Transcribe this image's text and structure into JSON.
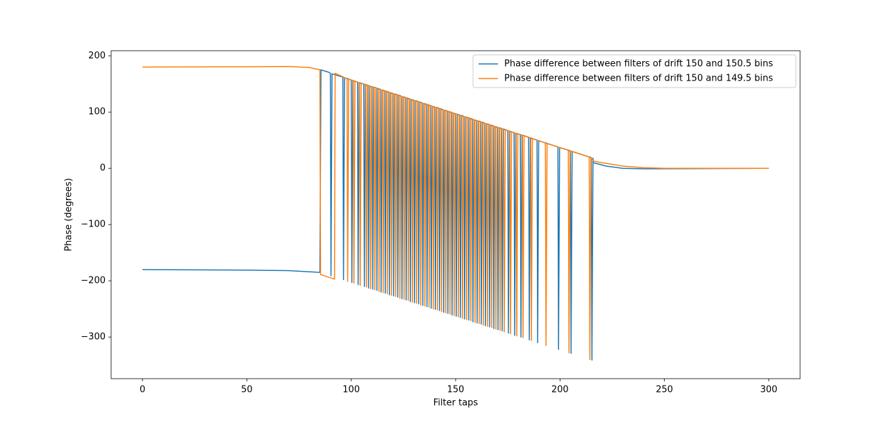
{
  "chart_data": {
    "type": "line",
    "xlabel": "Filter taps",
    "ylabel": "Phase (degrees)",
    "xlim": [
      -15,
      315
    ],
    "ylim": [
      -374,
      209
    ],
    "xticks": [
      0,
      50,
      100,
      150,
      200,
      250,
      300
    ],
    "yticks": [
      {
        "value": -300,
        "label": "−300"
      },
      {
        "value": -200,
        "label": "−200"
      },
      {
        "value": -100,
        "label": "−100"
      },
      0,
      100,
      200
    ],
    "legend": "upper right",
    "series": [
      {
        "name": "Phase difference between filters of drift 150 and 150.5 bins",
        "color": "#1f77b4",
        "x": [
          0,
          50,
          70,
          85,
          85.5,
          89,
          90,
          90.3,
          90.8,
          96,
          96.3,
          96.8,
          100,
          100.3,
          100.8,
          103,
          103.3,
          103.8,
          106,
          106.3,
          106.8,
          108,
          108.3,
          108.8,
          110,
          110.3,
          110.8,
          112,
          112.3,
          112.8,
          114,
          114.3,
          114.8,
          116,
          116.3,
          116.8,
          118,
          118.3,
          118.8,
          120,
          120.3,
          120.8,
          122,
          122.3,
          122.8,
          124,
          124.3,
          124.8,
          126,
          126.3,
          126.8,
          128,
          128.3,
          128.8,
          130,
          130.3,
          130.8,
          132,
          132.3,
          132.8,
          134,
          134.3,
          134.8,
          136,
          136.3,
          136.8,
          138,
          138.3,
          138.8,
          140,
          140.3,
          140.8,
          142,
          142.3,
          142.8,
          144,
          144.3,
          144.8,
          146,
          146.3,
          146.8,
          148,
          148.3,
          148.8,
          150,
          150.3,
          150.8,
          152,
          152.3,
          152.8,
          154,
          154.3,
          154.8,
          156,
          156.3,
          156.8,
          158,
          158.3,
          158.8,
          160,
          160.3,
          160.8,
          162,
          162.3,
          162.8,
          164,
          164.3,
          164.8,
          166,
          166.3,
          166.8,
          168,
          168.3,
          168.8,
          170,
          170.3,
          170.8,
          172,
          172.3,
          172.8,
          175,
          175.3,
          175.8,
          178,
          178.3,
          178.8,
          181,
          181.3,
          181.8,
          185,
          185.3,
          185.8,
          189,
          189.3,
          189.8,
          199,
          199.3,
          199.8,
          205,
          205.3,
          205.8,
          215,
          215.3,
          215.8,
          216,
          222,
          230,
          240,
          300
        ],
        "values": [
          -180,
          -181,
          -182,
          -185,
          175,
          171,
          169,
          -191,
          168,
          162,
          -198,
          161,
          157,
          -203,
          156,
          153,
          -207,
          152,
          150,
          -210,
          149,
          147,
          -213,
          146,
          145,
          -215,
          144,
          143,
          -217,
          142,
          140,
          -220,
          139,
          138,
          -222,
          137,
          135,
          -225,
          134,
          133,
          -227,
          132,
          131,
          -229,
          130,
          128,
          -232,
          127,
          126,
          -234,
          125,
          123,
          -237,
          122,
          121,
          -239,
          120,
          119,
          -241,
          118,
          116,
          -244,
          115,
          114,
          -246,
          113,
          111,
          -249,
          110,
          109,
          -251,
          108,
          107,
          -253,
          106,
          104,
          -256,
          103,
          102,
          -258,
          101,
          99,
          -261,
          98,
          97,
          -263,
          96,
          95,
          -265,
          94,
          92,
          -268,
          91,
          90,
          -270,
          89,
          87,
          -273,
          86,
          85,
          -275,
          84,
          83,
          -277,
          82,
          80,
          -280,
          79,
          78,
          -282,
          77,
          75,
          -285,
          74,
          73,
          -287,
          72,
          71,
          -289,
          70,
          67,
          -293,
          66,
          63,
          -297,
          62,
          60,
          -300,
          59,
          55,
          -305,
          54,
          50,
          -310,
          49,
          38,
          -322,
          37,
          31,
          -329,
          30,
          19,
          -341,
          18,
          10,
          4,
          0,
          -1,
          0
        ]
      },
      {
        "name": "Phase difference between filters of drift 150 and 149.5 bins",
        "color": "#ff7f0e",
        "x": [
          0,
          50,
          70,
          80,
          85,
          85.3,
          92,
          92.3,
          98,
          98.3,
          98.8,
          101,
          101.3,
          101.8,
          104,
          104.3,
          104.8,
          107,
          107.3,
          107.8,
          109,
          109.3,
          109.8,
          111,
          111.3,
          111.8,
          113,
          113.3,
          113.8,
          115,
          115.3,
          115.8,
          117,
          117.3,
          117.8,
          119,
          119.3,
          119.8,
          121,
          121.3,
          121.8,
          123,
          123.3,
          123.8,
          125,
          125.3,
          125.8,
          127,
          127.3,
          127.8,
          129,
          129.3,
          129.8,
          131,
          131.3,
          131.8,
          133,
          133.3,
          133.8,
          135,
          135.3,
          135.8,
          137,
          137.3,
          137.8,
          139,
          139.3,
          139.8,
          141,
          141.3,
          141.8,
          143,
          143.3,
          143.8,
          145,
          145.3,
          145.8,
          147,
          147.3,
          147.8,
          149,
          149.3,
          149.8,
          151,
          151.3,
          151.8,
          153,
          153.3,
          153.8,
          155,
          155.3,
          155.8,
          157,
          157.3,
          157.8,
          159,
          159.3,
          159.8,
          161,
          161.3,
          161.8,
          163,
          163.3,
          163.8,
          165,
          165.3,
          165.8,
          167,
          167.3,
          167.8,
          169,
          169.3,
          169.8,
          171,
          171.3,
          171.8,
          173,
          173.3,
          173.8,
          176,
          176.3,
          176.8,
          179,
          179.3,
          179.8,
          182,
          182.3,
          182.8,
          186,
          186.3,
          186.8,
          193,
          193.3,
          193.8,
          204,
          204.3,
          204.8,
          214,
          214.3,
          214.8,
          216,
          220,
          230,
          240,
          250,
          300
        ],
        "values": [
          180,
          180.5,
          181,
          179,
          175,
          -189,
          -197,
          169,
          159,
          -201,
          158,
          156,
          -204,
          155,
          152,
          -208,
          151,
          149,
          -211,
          148,
          146,
          -214,
          145,
          144,
          -216,
          143,
          141,
          -219,
          140,
          139,
          -221,
          138,
          137,
          -223,
          136,
          134,
          -226,
          133,
          132,
          -228,
          131,
          129,
          -231,
          128,
          127,
          -233,
          126,
          125,
          -235,
          124,
          122,
          -238,
          121,
          120,
          -240,
          119,
          117,
          -243,
          116,
          115,
          -245,
          114,
          113,
          -247,
          112,
          110,
          -250,
          109,
          108,
          -252,
          107,
          105,
          -255,
          104,
          103,
          -257,
          102,
          101,
          -259,
          100,
          98,
          -262,
          97,
          96,
          -264,
          95,
          93,
          -267,
          92,
          91,
          -269,
          90,
          89,
          -271,
          88,
          86,
          -274,
          85,
          84,
          -276,
          83,
          81,
          -279,
          80,
          79,
          -281,
          78,
          77,
          -283,
          76,
          74,
          -286,
          73,
          72,
          -288,
          71,
          69,
          -291,
          68,
          66,
          -294,
          65,
          62,
          -298,
          61,
          59,
          -301,
          58,
          54,
          -306,
          53,
          45,
          -315,
          44,
          32,
          -328,
          31,
          20,
          -340,
          19,
          13,
          10,
          4,
          1,
          0,
          0
        ]
      }
    ]
  }
}
